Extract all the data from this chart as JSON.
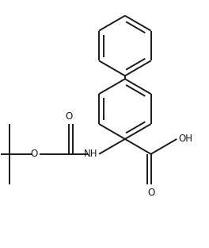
{
  "background": "#ffffff",
  "line_color": "#1a1a1a",
  "line_width": 1.4,
  "font_size": 8.5,
  "fig_width": 2.64,
  "fig_height": 3.12,
  "dpi": 100,
  "xlim": [
    0,
    264
  ],
  "ylim": [
    0,
    312
  ]
}
